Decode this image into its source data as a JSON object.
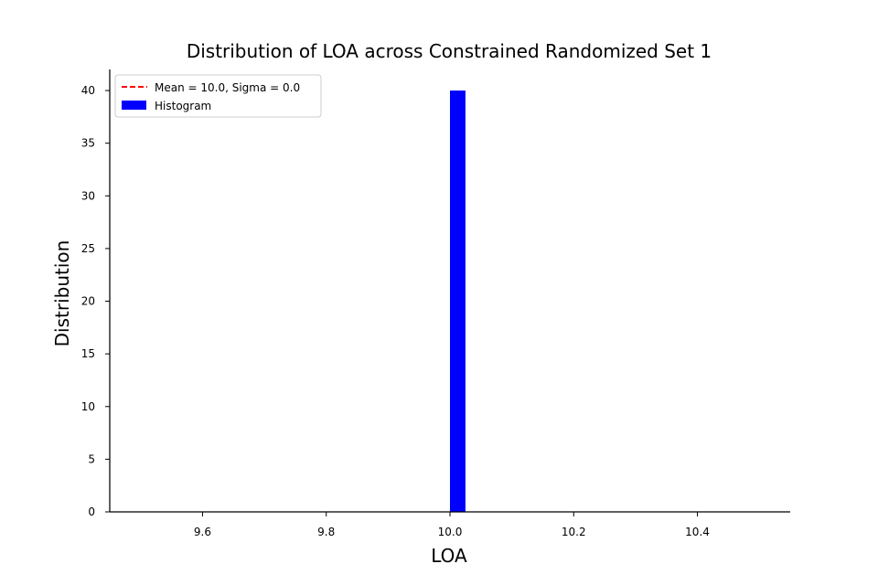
{
  "chart_data": {
    "type": "bar",
    "title": "Distribution of LOA across Constrained Randomized Set 1",
    "xlabel": "LOA",
    "ylabel": "Distribution",
    "xlim": [
      9.45,
      10.55
    ],
    "ylim": [
      0,
      42
    ],
    "xticks": [
      9.6,
      9.8,
      10.0,
      10.2,
      10.4
    ],
    "xtick_labels": [
      "9.6",
      "9.8",
      "10.0",
      "10.2",
      "10.4"
    ],
    "yticks": [
      0,
      5,
      10,
      15,
      20,
      25,
      30,
      35,
      40
    ],
    "ytick_labels": [
      "0",
      "5",
      "10",
      "15",
      "20",
      "25",
      "30",
      "35",
      "40"
    ],
    "bins": [
      {
        "x0": 9.5,
        "x1": 9.525,
        "count": 0
      },
      {
        "x0": 9.525,
        "x1": 9.55,
        "count": 0
      },
      {
        "x0": 9.55,
        "x1": 9.575,
        "count": 0
      },
      {
        "x0": 9.575,
        "x1": 9.6,
        "count": 0
      },
      {
        "x0": 9.6,
        "x1": 9.625,
        "count": 0
      },
      {
        "x0": 9.625,
        "x1": 9.65,
        "count": 0
      },
      {
        "x0": 9.65,
        "x1": 9.675,
        "count": 0
      },
      {
        "x0": 9.675,
        "x1": 9.7,
        "count": 0
      },
      {
        "x0": 9.7,
        "x1": 9.725,
        "count": 0
      },
      {
        "x0": 9.725,
        "x1": 9.75,
        "count": 0
      },
      {
        "x0": 9.75,
        "x1": 9.775,
        "count": 0
      },
      {
        "x0": 9.775,
        "x1": 9.8,
        "count": 0
      },
      {
        "x0": 9.8,
        "x1": 9.825,
        "count": 0
      },
      {
        "x0": 9.825,
        "x1": 9.85,
        "count": 0
      },
      {
        "x0": 9.85,
        "x1": 9.875,
        "count": 0
      },
      {
        "x0": 9.875,
        "x1": 9.9,
        "count": 0
      },
      {
        "x0": 9.9,
        "x1": 9.925,
        "count": 0
      },
      {
        "x0": 9.925,
        "x1": 9.95,
        "count": 0
      },
      {
        "x0": 9.95,
        "x1": 9.975,
        "count": 0
      },
      {
        "x0": 9.975,
        "x1": 10.0,
        "count": 0
      },
      {
        "x0": 10.0,
        "x1": 10.025,
        "count": 40
      },
      {
        "x0": 10.025,
        "x1": 10.05,
        "count": 0
      },
      {
        "x0": 10.05,
        "x1": 10.075,
        "count": 0
      },
      {
        "x0": 10.075,
        "x1": 10.1,
        "count": 0
      },
      {
        "x0": 10.1,
        "x1": 10.125,
        "count": 0
      },
      {
        "x0": 10.125,
        "x1": 10.15,
        "count": 0
      },
      {
        "x0": 10.15,
        "x1": 10.175,
        "count": 0
      },
      {
        "x0": 10.175,
        "x1": 10.2,
        "count": 0
      },
      {
        "x0": 10.2,
        "x1": 10.225,
        "count": 0
      },
      {
        "x0": 10.225,
        "x1": 10.25,
        "count": 0
      },
      {
        "x0": 10.25,
        "x1": 10.275,
        "count": 0
      },
      {
        "x0": 10.275,
        "x1": 10.3,
        "count": 0
      },
      {
        "x0": 10.3,
        "x1": 10.325,
        "count": 0
      },
      {
        "x0": 10.325,
        "x1": 10.35,
        "count": 0
      },
      {
        "x0": 10.35,
        "x1": 10.375,
        "count": 0
      },
      {
        "x0": 10.375,
        "x1": 10.4,
        "count": 0
      },
      {
        "x0": 10.4,
        "x1": 10.425,
        "count": 0
      },
      {
        "x0": 10.425,
        "x1": 10.45,
        "count": 0
      },
      {
        "x0": 10.45,
        "x1": 10.475,
        "count": 0
      },
      {
        "x0": 10.475,
        "x1": 10.5,
        "count": 0
      }
    ],
    "series": [
      {
        "name": "Mean = 10.0, Sigma = 0.0",
        "kind": "dashed-line",
        "color": "#ff0000"
      },
      {
        "name": "Histogram",
        "kind": "bar",
        "color": "#0000ff"
      }
    ],
    "legend_position": "upper-left",
    "grid": false,
    "spines": [
      "left",
      "bottom"
    ]
  }
}
